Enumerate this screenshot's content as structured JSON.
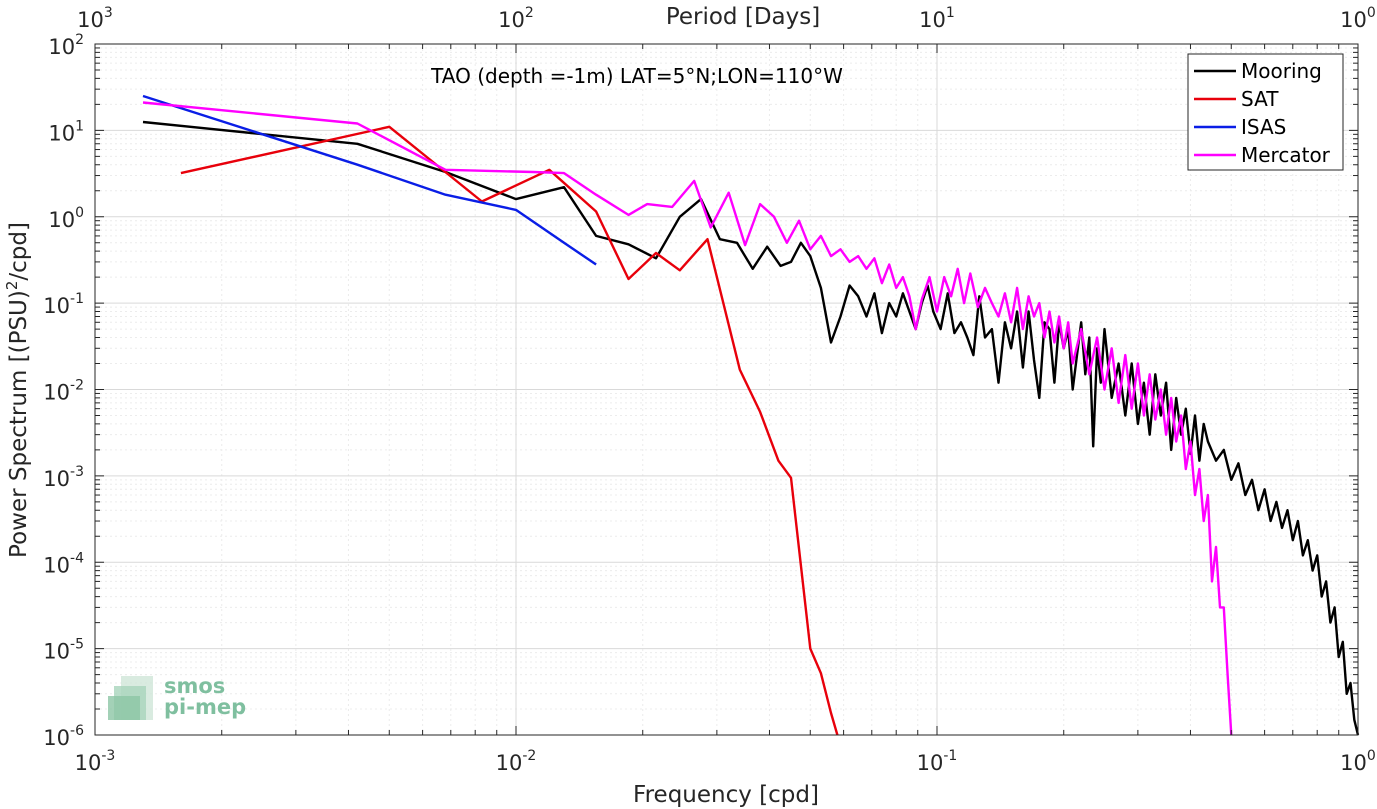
{
  "chart_data": {
    "type": "line",
    "title": "TAO (depth =-1m) LAT=5°N;LON=110°W",
    "xlabel": "Frequency [cpd]",
    "ylabel": "Power Spectrum [(PSU)",
    "ylabel_sup": "2",
    "ylabel_tail": "/cpd]",
    "top_xlabel": "Period [Days]",
    "xscale": "log",
    "yscale": "log",
    "xlim": [
      0.001,
      1
    ],
    "ylim": [
      1e-06,
      100
    ],
    "grid": true,
    "legend_position": "top-right",
    "x_ticks": [
      {
        "base": "10",
        "exp": "-3"
      },
      {
        "base": "10",
        "exp": "-2"
      },
      {
        "base": "10",
        "exp": "-1"
      },
      {
        "base": "10",
        "exp": "0"
      }
    ],
    "top_ticks": [
      {
        "base": "10",
        "exp": "3"
      },
      {
        "base": "10",
        "exp": "2"
      },
      {
        "base": "10",
        "exp": "1"
      },
      {
        "base": "10",
        "exp": "0"
      }
    ],
    "y_ticks": [
      {
        "base": "10",
        "exp": "2"
      },
      {
        "base": "10",
        "exp": "1"
      },
      {
        "base": "10",
        "exp": "0"
      },
      {
        "base": "10",
        "exp": "-1"
      },
      {
        "base": "10",
        "exp": "-2"
      },
      {
        "base": "10",
        "exp": "-3"
      },
      {
        "base": "10",
        "exp": "-4"
      },
      {
        "base": "10",
        "exp": "-5"
      },
      {
        "base": "10",
        "exp": "-6"
      }
    ],
    "series": [
      {
        "name": "Mooring",
        "color": "#000000",
        "points": [
          [
            0.0013,
            12.5
          ],
          [
            0.0042,
            7.0
          ],
          [
            0.0068,
            3.3
          ],
          [
            0.01,
            1.6
          ],
          [
            0.013,
            2.2
          ],
          [
            0.0155,
            0.6
          ],
          [
            0.0185,
            0.48
          ],
          [
            0.0215,
            0.33
          ],
          [
            0.0245,
            1.0
          ],
          [
            0.0275,
            1.6
          ],
          [
            0.0305,
            0.55
          ],
          [
            0.0335,
            0.5
          ],
          [
            0.0365,
            0.25
          ],
          [
            0.0395,
            0.45
          ],
          [
            0.0425,
            0.27
          ],
          [
            0.045,
            0.3
          ],
          [
            0.0475,
            0.5
          ],
          [
            0.05,
            0.35
          ],
          [
            0.053,
            0.15
          ],
          [
            0.056,
            0.035
          ],
          [
            0.059,
            0.07
          ],
          [
            0.062,
            0.16
          ],
          [
            0.065,
            0.12
          ],
          [
            0.068,
            0.07
          ],
          [
            0.071,
            0.13
          ],
          [
            0.074,
            0.045
          ],
          [
            0.077,
            0.1
          ],
          [
            0.08,
            0.07
          ],
          [
            0.083,
            0.13
          ],
          [
            0.086,
            0.08
          ],
          [
            0.089,
            0.05
          ],
          [
            0.092,
            0.1
          ],
          [
            0.095,
            0.16
          ],
          [
            0.098,
            0.08
          ],
          [
            0.102,
            0.05
          ],
          [
            0.106,
            0.13
          ],
          [
            0.11,
            0.045
          ],
          [
            0.114,
            0.06
          ],
          [
            0.118,
            0.04
          ],
          [
            0.122,
            0.025
          ],
          [
            0.126,
            0.12
          ],
          [
            0.13,
            0.04
          ],
          [
            0.135,
            0.05
          ],
          [
            0.14,
            0.012
          ],
          [
            0.145,
            0.06
          ],
          [
            0.15,
            0.03
          ],
          [
            0.155,
            0.08
          ],
          [
            0.16,
            0.018
          ],
          [
            0.165,
            0.08
          ],
          [
            0.17,
            0.022
          ],
          [
            0.175,
            0.008
          ],
          [
            0.18,
            0.06
          ],
          [
            0.185,
            0.05
          ],
          [
            0.19,
            0.012
          ],
          [
            0.195,
            0.06
          ],
          [
            0.2,
            0.03
          ],
          [
            0.205,
            0.05
          ],
          [
            0.21,
            0.01
          ],
          [
            0.215,
            0.025
          ],
          [
            0.22,
            0.06
          ],
          [
            0.225,
            0.015
          ],
          [
            0.23,
            0.04
          ],
          [
            0.235,
            0.0022
          ],
          [
            0.24,
            0.03
          ],
          [
            0.245,
            0.012
          ],
          [
            0.25,
            0.05
          ],
          [
            0.26,
            0.008
          ],
          [
            0.27,
            0.02
          ],
          [
            0.28,
            0.005
          ],
          [
            0.29,
            0.02
          ],
          [
            0.3,
            0.004
          ],
          [
            0.31,
            0.012
          ],
          [
            0.32,
            0.003
          ],
          [
            0.33,
            0.015
          ],
          [
            0.34,
            0.005
          ],
          [
            0.35,
            0.012
          ],
          [
            0.36,
            0.002
          ],
          [
            0.37,
            0.008
          ],
          [
            0.38,
            0.003
          ],
          [
            0.39,
            0.006
          ],
          [
            0.4,
            0.0018
          ],
          [
            0.41,
            0.005
          ],
          [
            0.42,
            0.0015
          ],
          [
            0.43,
            0.004
          ],
          [
            0.44,
            0.0025
          ],
          [
            0.46,
            0.0015
          ],
          [
            0.48,
            0.002
          ],
          [
            0.5,
            0.0009
          ],
          [
            0.52,
            0.0014
          ],
          [
            0.54,
            0.0006
          ],
          [
            0.56,
            0.0009
          ],
          [
            0.58,
            0.0004
          ],
          [
            0.6,
            0.0007
          ],
          [
            0.62,
            0.0003
          ],
          [
            0.64,
            0.0005
          ],
          [
            0.66,
            0.00025
          ],
          [
            0.68,
            0.0004
          ],
          [
            0.7,
            0.00018
          ],
          [
            0.72,
            0.0003
          ],
          [
            0.74,
            0.00012
          ],
          [
            0.76,
            0.00018
          ],
          [
            0.78,
            8e-05
          ],
          [
            0.8,
            0.00012
          ],
          [
            0.82,
            4e-05
          ],
          [
            0.84,
            6e-05
          ],
          [
            0.86,
            2e-05
          ],
          [
            0.88,
            3e-05
          ],
          [
            0.9,
            8e-06
          ],
          [
            0.92,
            1.2e-05
          ],
          [
            0.94,
            3e-06
          ],
          [
            0.96,
            4e-06
          ],
          [
            0.98,
            1.5e-06
          ],
          [
            1.0,
            1e-06
          ]
        ]
      },
      {
        "name": "SAT",
        "color": "#e8000b",
        "points": [
          [
            0.0016,
            3.2
          ],
          [
            0.005,
            11.0
          ],
          [
            0.0083,
            1.5
          ],
          [
            0.012,
            3.5
          ],
          [
            0.0155,
            1.15
          ],
          [
            0.0185,
            0.19
          ],
          [
            0.0215,
            0.38
          ],
          [
            0.0245,
            0.24
          ],
          [
            0.0285,
            0.55
          ],
          [
            0.034,
            0.017
          ],
          [
            0.038,
            0.0055
          ],
          [
            0.042,
            0.0015
          ],
          [
            0.045,
            0.00095
          ],
          [
            0.05,
            1e-05
          ],
          [
            0.053,
            5.2e-06
          ],
          [
            0.056,
            1.8e-06
          ],
          [
            0.058,
            1e-06
          ]
        ]
      },
      {
        "name": "ISAS",
        "color": "#0a1ee6",
        "points": [
          [
            0.0013,
            25.0
          ],
          [
            0.0042,
            4.0
          ],
          [
            0.0068,
            1.8
          ],
          [
            0.01,
            1.2
          ],
          [
            0.013,
            0.5
          ],
          [
            0.0155,
            0.28
          ]
        ]
      },
      {
        "name": "Mercator",
        "color": "#ff00ff",
        "points": [
          [
            0.0013,
            21.0
          ],
          [
            0.0042,
            12.0
          ],
          [
            0.0068,
            3.5
          ],
          [
            0.011,
            3.3
          ],
          [
            0.013,
            3.2
          ],
          [
            0.0155,
            1.8
          ],
          [
            0.0185,
            1.05
          ],
          [
            0.0205,
            1.4
          ],
          [
            0.0235,
            1.3
          ],
          [
            0.0265,
            2.6
          ],
          [
            0.029,
            0.75
          ],
          [
            0.032,
            1.9
          ],
          [
            0.035,
            0.47
          ],
          [
            0.038,
            1.4
          ],
          [
            0.041,
            1.0
          ],
          [
            0.044,
            0.5
          ],
          [
            0.047,
            0.9
          ],
          [
            0.05,
            0.42
          ],
          [
            0.053,
            0.6
          ],
          [
            0.056,
            0.35
          ],
          [
            0.059,
            0.42
          ],
          [
            0.062,
            0.3
          ],
          [
            0.065,
            0.35
          ],
          [
            0.068,
            0.25
          ],
          [
            0.071,
            0.33
          ],
          [
            0.074,
            0.17
          ],
          [
            0.077,
            0.28
          ],
          [
            0.08,
            0.15
          ],
          [
            0.083,
            0.2
          ],
          [
            0.086,
            0.12
          ],
          [
            0.089,
            0.05
          ],
          [
            0.092,
            0.11
          ],
          [
            0.096,
            0.2
          ],
          [
            0.1,
            0.08
          ],
          [
            0.104,
            0.2
          ],
          [
            0.108,
            0.12
          ],
          [
            0.112,
            0.25
          ],
          [
            0.116,
            0.1
          ],
          [
            0.12,
            0.22
          ],
          [
            0.125,
            0.09
          ],
          [
            0.13,
            0.15
          ],
          [
            0.135,
            0.1
          ],
          [
            0.14,
            0.07
          ],
          [
            0.145,
            0.13
          ],
          [
            0.15,
            0.06
          ],
          [
            0.155,
            0.15
          ],
          [
            0.16,
            0.05
          ],
          [
            0.165,
            0.12
          ],
          [
            0.17,
            0.07
          ],
          [
            0.175,
            0.1
          ],
          [
            0.18,
            0.04
          ],
          [
            0.185,
            0.08
          ],
          [
            0.19,
            0.035
          ],
          [
            0.195,
            0.07
          ],
          [
            0.2,
            0.03
          ],
          [
            0.205,
            0.06
          ],
          [
            0.21,
            0.02
          ],
          [
            0.22,
            0.05
          ],
          [
            0.23,
            0.015
          ],
          [
            0.24,
            0.04
          ],
          [
            0.25,
            0.01
          ],
          [
            0.26,
            0.03
          ],
          [
            0.27,
            0.007
          ],
          [
            0.28,
            0.025
          ],
          [
            0.29,
            0.006
          ],
          [
            0.3,
            0.02
          ],
          [
            0.31,
            0.005
          ],
          [
            0.32,
            0.015
          ],
          [
            0.33,
            0.0045
          ],
          [
            0.34,
            0.01
          ],
          [
            0.35,
            0.003
          ],
          [
            0.36,
            0.008
          ],
          [
            0.37,
            0.0025
          ],
          [
            0.38,
            0.005
          ],
          [
            0.39,
            0.0012
          ],
          [
            0.4,
            0.0025
          ],
          [
            0.41,
            0.0006
          ],
          [
            0.42,
            0.0012
          ],
          [
            0.43,
            0.0003
          ],
          [
            0.44,
            0.0006
          ],
          [
            0.45,
            6e-05
          ],
          [
            0.46,
            0.00015
          ],
          [
            0.47,
            3e-05
          ],
          [
            0.48,
            3e-05
          ],
          [
            0.49,
            5e-06
          ],
          [
            0.5,
            1e-06
          ]
        ]
      }
    ]
  },
  "logo": {
    "line1": "smos",
    "line2": "pi-mep"
  }
}
